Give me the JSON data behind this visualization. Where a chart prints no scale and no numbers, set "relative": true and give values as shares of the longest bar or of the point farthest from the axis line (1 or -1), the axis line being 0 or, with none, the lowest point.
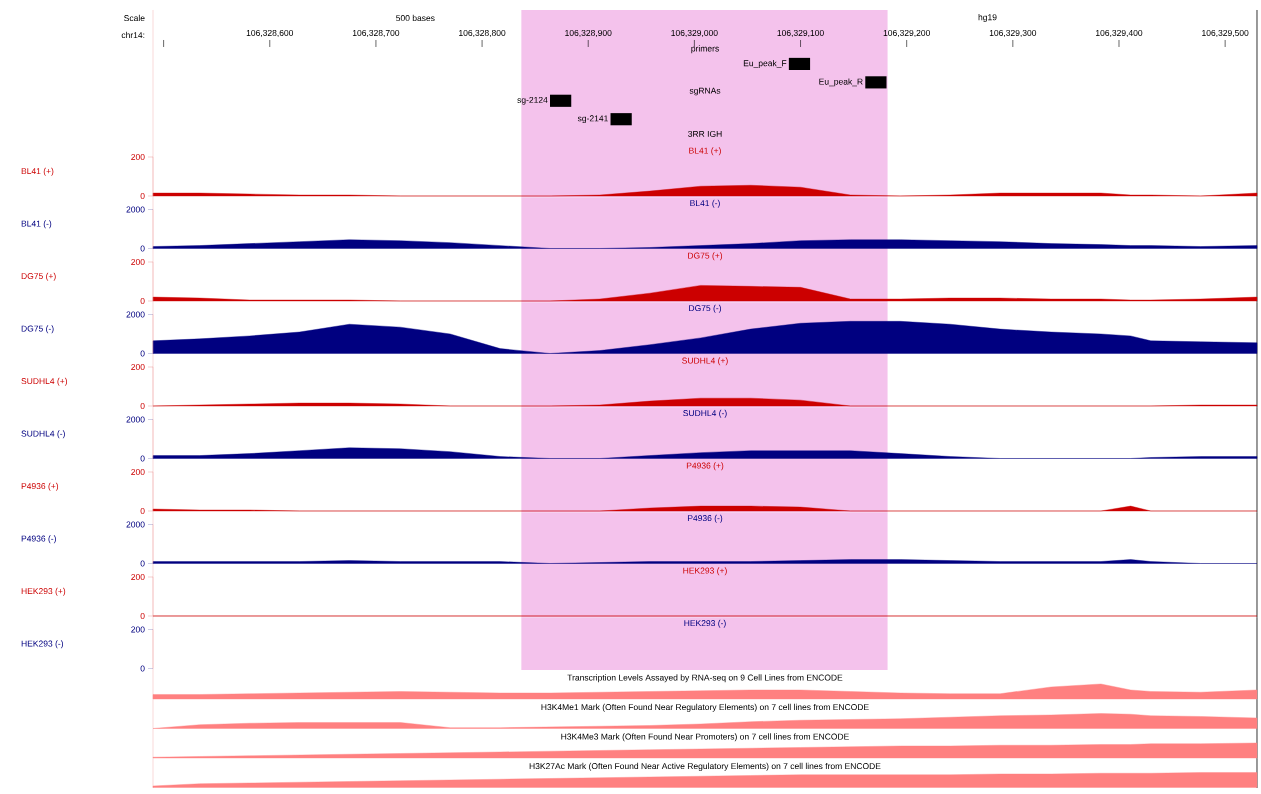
{
  "chart_data": [
    {
      "type": "bar",
      "orientation": "horizontal",
      "categories": [
        "Eu_peak_F",
        "Eu_peak_R",
        "sg-2124",
        "sg-2141"
      ],
      "base": [
        106329089,
        106329161,
        106328864,
        106328921
      ],
      "values": [
        20,
        20,
        20,
        20
      ],
      "color": "#000000",
      "xlim": [
        106328490,
        106329530
      ],
      "xticks": [
        {
          "value": 106328500,
          "label": null
        },
        {
          "value": 106328600,
          "label": "106,328,600"
        },
        {
          "value": 106328700,
          "label": "106,328,700"
        },
        {
          "value": 106328800,
          "label": "106,328,800"
        },
        {
          "value": 106328900,
          "label": "106,328,900"
        },
        {
          "value": 106329000,
          "label": "106,329,000"
        },
        {
          "value": 106329100,
          "label": "106,329,100"
        },
        {
          "value": 106329200,
          "label": "106,329,200"
        },
        {
          "value": 106329300,
          "label": "106,329,300"
        },
        {
          "value": 106329400,
          "label": "106,329,400"
        },
        {
          "value": 106329500,
          "label": "106,329,500"
        }
      ],
      "tick_labels": "x",
      "annotations": [
        "Scale",
        "chr14:",
        "500 bases",
        "hg19",
        "primers",
        "sgRNAs",
        "3RR IGH"
      ],
      "bands": [
        {
          "axis": "x",
          "from": 106328837,
          "to": 106329182,
          "color": "#f4c2ec"
        }
      ]
    },
    {
      "type": "area",
      "title": "BL41 (+)",
      "ylabel": "BL41 (+)",
      "color": "#cc0000",
      "xlim": [
        106328490,
        106329530
      ],
      "ylim": [
        0,
        200
      ],
      "yticks": [
        0,
        200
      ],
      "tick_labels": "y",
      "bands": [
        {
          "axis": "x",
          "from": 106328837,
          "to": 106329182,
          "color": "#f4c2ec"
        }
      ],
      "x": [
        106328490,
        106328534,
        106328581,
        106328628,
        106328675,
        106328723,
        106328770,
        106328817,
        106328864,
        106328911,
        106328958,
        106329006,
        106329053,
        106329100,
        106329147,
        106329194,
        106329241,
        106329288,
        106329336,
        106329383,
        106329411,
        106329430,
        106329477,
        106329530
      ],
      "values": [
        15,
        15,
        10,
        5,
        5,
        0,
        0,
        0,
        0,
        5,
        25,
        50,
        55,
        45,
        5,
        0,
        5,
        15,
        15,
        15,
        5,
        5,
        0,
        15
      ]
    },
    {
      "type": "area",
      "title": "BL41 (-)",
      "ylabel": "BL41 (-)",
      "color": "#000080",
      "xlim": [
        106328490,
        106329530
      ],
      "ylim": [
        0,
        2000
      ],
      "yticks": [
        0,
        2000
      ],
      "tick_labels": "y",
      "bands": [
        {
          "axis": "x",
          "from": 106328837,
          "to": 106329182,
          "color": "#f4c2ec"
        }
      ],
      "x": [
        106328490,
        106328534,
        106328581,
        106328628,
        106328675,
        106328723,
        106328770,
        106328817,
        106328864,
        106328911,
        106328958,
        106329006,
        106329053,
        106329100,
        106329147,
        106329194,
        106329241,
        106329288,
        106329336,
        106329383,
        106329411,
        106329430,
        106329477,
        106329530
      ],
      "values": [
        100,
        150,
        250,
        350,
        450,
        400,
        300,
        150,
        0,
        0,
        50,
        150,
        250,
        400,
        450,
        450,
        400,
        350,
        250,
        200,
        150,
        150,
        100,
        150
      ]
    },
    {
      "type": "area",
      "title": "DG75 (+)",
      "ylabel": "DG75 (+)",
      "color": "#cc0000",
      "xlim": [
        106328490,
        106329530
      ],
      "ylim": [
        0,
        200
      ],
      "yticks": [
        0,
        200
      ],
      "tick_labels": "y",
      "bands": [
        {
          "axis": "x",
          "from": 106328837,
          "to": 106329182,
          "color": "#f4c2ec"
        }
      ],
      "x": [
        106328490,
        106328534,
        106328581,
        106328628,
        106328675,
        106328723,
        106328770,
        106328817,
        106328864,
        106328911,
        106328958,
        106329006,
        106329053,
        106329100,
        106329147,
        106329194,
        106329241,
        106329288,
        106329336,
        106329383,
        106329411,
        106329430,
        106329477,
        106329530
      ],
      "values": [
        20,
        15,
        5,
        5,
        5,
        0,
        0,
        0,
        0,
        10,
        40,
        80,
        75,
        70,
        10,
        10,
        15,
        15,
        10,
        10,
        5,
        5,
        10,
        20
      ]
    },
    {
      "type": "area",
      "title": "DG75 (-)",
      "ylabel": "DG75 (-)",
      "color": "#000080",
      "xlim": [
        106328490,
        106329530
      ],
      "ylim": [
        0,
        2000
      ],
      "yticks": [
        0,
        2000
      ],
      "tick_labels": "y",
      "bands": [
        {
          "axis": "x",
          "from": 106328837,
          "to": 106329182,
          "color": "#f4c2ec"
        }
      ],
      "x": [
        106328490,
        106328534,
        106328581,
        106328628,
        106328675,
        106328723,
        106328770,
        106328817,
        106328864,
        106328911,
        106328958,
        106329006,
        106329053,
        106329100,
        106329147,
        106329194,
        106329241,
        106329288,
        106329336,
        106329383,
        106329411,
        106329430,
        106329477,
        106329530
      ],
      "values": [
        650,
        750,
        900,
        1100,
        1500,
        1350,
        1000,
        250,
        0,
        150,
        450,
        800,
        1250,
        1550,
        1650,
        1650,
        1500,
        1250,
        1100,
        1000,
        900,
        650,
        600,
        550
      ]
    },
    {
      "type": "area",
      "title": "SUDHL4 (+)",
      "ylabel": "SUDHL4 (+)",
      "color": "#cc0000",
      "xlim": [
        106328490,
        106329530
      ],
      "ylim": [
        0,
        200
      ],
      "yticks": [
        0,
        200
      ],
      "tick_labels": "y",
      "bands": [
        {
          "axis": "x",
          "from": 106328837,
          "to": 106329182,
          "color": "#f4c2ec"
        }
      ],
      "x": [
        106328490,
        106328534,
        106328581,
        106328628,
        106328675,
        106328723,
        106328770,
        106328817,
        106328864,
        106328911,
        106328958,
        106329006,
        106329053,
        106329100,
        106329147,
        106329194,
        106329241,
        106329288,
        106329336,
        106329383,
        106329411,
        106329430,
        106329477,
        106329530
      ],
      "values": [
        0,
        5,
        10,
        15,
        15,
        10,
        0,
        0,
        0,
        5,
        25,
        40,
        40,
        30,
        0,
        0,
        0,
        0,
        0,
        0,
        0,
        0,
        5,
        5
      ]
    },
    {
      "type": "area",
      "title": "SUDHL4 (-)",
      "ylabel": "SUDHL4 (-)",
      "color": "#000080",
      "xlim": [
        106328490,
        106329530
      ],
      "ylim": [
        0,
        2000
      ],
      "yticks": [
        0,
        2000
      ],
      "tick_labels": "y",
      "bands": [
        {
          "axis": "x",
          "from": 106328837,
          "to": 106329182,
          "color": "#f4c2ec"
        }
      ],
      "x": [
        106328490,
        106328534,
        106328581,
        106328628,
        106328675,
        106328723,
        106328770,
        106328817,
        106328864,
        106328911,
        106328958,
        106329006,
        106329053,
        106329100,
        106329147,
        106329194,
        106329241,
        106329288,
        106329336,
        106329383,
        106329411,
        106329430,
        106329477,
        106329530
      ],
      "values": [
        150,
        150,
        250,
        400,
        550,
        500,
        350,
        100,
        0,
        0,
        150,
        300,
        400,
        400,
        400,
        250,
        100,
        0,
        0,
        0,
        0,
        50,
        100,
        100
      ]
    },
    {
      "type": "area",
      "title": "P4936 (+)",
      "ylabel": "P4936 (+)",
      "color": "#cc0000",
      "xlim": [
        106328490,
        106329530
      ],
      "ylim": [
        0,
        200
      ],
      "yticks": [
        0,
        200
      ],
      "tick_labels": "y",
      "bands": [
        {
          "axis": "x",
          "from": 106328837,
          "to": 106329182,
          "color": "#f4c2ec"
        }
      ],
      "x": [
        106328490,
        106328534,
        106328581,
        106328628,
        106328675,
        106328723,
        106328770,
        106328817,
        106328864,
        106328911,
        106328958,
        106329006,
        106329053,
        106329100,
        106329147,
        106329194,
        106329241,
        106329288,
        106329336,
        106329383,
        106329411,
        106329430,
        106329477,
        106329530
      ],
      "values": [
        10,
        5,
        5,
        0,
        0,
        0,
        0,
        0,
        0,
        0,
        15,
        25,
        25,
        20,
        0,
        0,
        0,
        0,
        0,
        0,
        25,
        0,
        0,
        0
      ]
    },
    {
      "type": "area",
      "title": "P4936 (-)",
      "ylabel": "P4936 (-)",
      "color": "#000080",
      "xlim": [
        106328490,
        106329530
      ],
      "ylim": [
        0,
        2000
      ],
      "yticks": [
        0,
        2000
      ],
      "tick_labels": "y",
      "bands": [
        {
          "axis": "x",
          "from": 106328837,
          "to": 106329182,
          "color": "#f4c2ec"
        }
      ],
      "x": [
        106328490,
        106328534,
        106328581,
        106328628,
        106328675,
        106328723,
        106328770,
        106328817,
        106328864,
        106328911,
        106328958,
        106329006,
        106329053,
        106329100,
        106329147,
        106329194,
        106329241,
        106329288,
        106329336,
        106329383,
        106329411,
        106329430,
        106329477,
        106329530
      ],
      "values": [
        100,
        100,
        100,
        100,
        150,
        100,
        100,
        100,
        0,
        50,
        100,
        100,
        100,
        150,
        200,
        200,
        150,
        100,
        100,
        100,
        200,
        100,
        0,
        0
      ]
    },
    {
      "type": "line",
      "title": "HEK293 (+)",
      "ylabel": "HEK293 (+)",
      "color": "#cc0000",
      "xlim": [
        106328490,
        106329530
      ],
      "ylim": [
        0,
        200
      ],
      "yticks": [
        0,
        200
      ],
      "tick_labels": "y",
      "bands": [
        {
          "axis": "x",
          "from": 106328837,
          "to": 106329182,
          "color": "#f4c2ec"
        }
      ],
      "x": [
        106328490,
        106329530
      ],
      "values": [
        0,
        0
      ]
    },
    {
      "type": "area",
      "title": "HEK293 (-)",
      "ylabel": "HEK293 (-)",
      "color": "#000080",
      "xlim": [
        106328490,
        106329530
      ],
      "ylim": [
        0,
        200
      ],
      "yticks": [
        0,
        200
      ],
      "tick_labels": "y",
      "bands": [
        {
          "axis": "x",
          "from": 106328837,
          "to": 106329182,
          "color": "#f4c2ec"
        }
      ]
    },
    {
      "type": "area",
      "relative": true,
      "title": "Transcription Levels Assayed by RNA-seq on 9 Cell Lines from ENCODE",
      "color": "#ff8080",
      "xlim": [
        106328490,
        106329530
      ],
      "tick_labels": false,
      "x": [
        106328490,
        106328534,
        106328581,
        106328628,
        106328675,
        106328723,
        106328770,
        106328817,
        106328864,
        106328911,
        106328958,
        106329006,
        106329053,
        106329100,
        106329147,
        106329194,
        106329241,
        106329288,
        106329336,
        106329383,
        106329411,
        106329430,
        106329477,
        106329530
      ],
      "values": [
        0.3,
        0.3,
        0.35,
        0.4,
        0.45,
        0.5,
        0.45,
        0.4,
        0.4,
        0.45,
        0.5,
        0.55,
        0.6,
        0.6,
        0.5,
        0.4,
        0.35,
        0.35,
        0.8,
        1,
        0.6,
        0.5,
        0.45,
        0.6
      ]
    },
    {
      "type": "area",
      "relative": true,
      "title": "H3K4Me1 Mark (Often Found Near Regulatory Elements) on 7 cell lines from ENCODE",
      "color": "#ff8080",
      "xlim": [
        106328490,
        106329530
      ],
      "tick_labels": false,
      "x": [
        106328490,
        106328534,
        106328581,
        106328628,
        106328675,
        106328723,
        106328770,
        106328817,
        106328864,
        106328911,
        106328958,
        106329006,
        106329053,
        106329100,
        106329147,
        106329194,
        106329241,
        106329288,
        106329336,
        106329383,
        106329411,
        106329430,
        106329477,
        106329530
      ],
      "values": [
        0,
        0.25,
        0.35,
        0.4,
        0.4,
        0.4,
        0.05,
        0.05,
        0.1,
        0.15,
        0.2,
        0.3,
        0.45,
        0.55,
        0.6,
        0.65,
        0.75,
        0.85,
        0.9,
        1,
        0.95,
        0.85,
        0.8,
        0.7
      ]
    },
    {
      "type": "area",
      "relative": true,
      "title": "H3K4Me3 Mark (Often Found Near Promoters) on 7 cell lines from ENCODE",
      "color": "#ff8080",
      "xlim": [
        106328490,
        106329530
      ],
      "tick_labels": false,
      "x": [
        106328490,
        106328534,
        106328581,
        106328628,
        106328675,
        106328723,
        106328770,
        106328817,
        106328864,
        106328911,
        106328958,
        106329006,
        106329053,
        106329100,
        106329147,
        106329194,
        106329241,
        106329288,
        106329336,
        106329383,
        106329411,
        106329430,
        106329477,
        106329530
      ],
      "values": [
        0.05,
        0.1,
        0.15,
        0.2,
        0.25,
        0.3,
        0.35,
        0.4,
        0.45,
        0.5,
        0.55,
        0.6,
        0.65,
        0.7,
        0.75,
        0.8,
        0.8,
        0.85,
        0.85,
        0.9,
        0.9,
        0.95,
        0.95,
        1
      ]
    },
    {
      "type": "area",
      "relative": true,
      "title": "H3K27Ac Mark (Often Found Near Active Regulatory Elements) on 7 cell lines from ENCODE",
      "color": "#ff8080",
      "xlim": [
        106328490,
        106329530
      ],
      "tick_labels": false,
      "x": [
        106328490,
        106328534,
        106328581,
        106328628,
        106328675,
        106328723,
        106328770,
        106328817,
        106328864,
        106328911,
        106328958,
        106329006,
        106329053,
        106329100,
        106329147,
        106329194,
        106329241,
        106329288,
        106329336,
        106329383,
        106329411,
        106329430,
        106329477,
        106329530
      ],
      "values": [
        0.1,
        0.25,
        0.3,
        0.35,
        0.4,
        0.45,
        0.5,
        0.55,
        0.6,
        0.65,
        0.7,
        0.75,
        0.8,
        0.85,
        0.85,
        0.85,
        0.85,
        0.9,
        0.9,
        0.95,
        0.95,
        0.95,
        1,
        1
      ]
    }
  ]
}
